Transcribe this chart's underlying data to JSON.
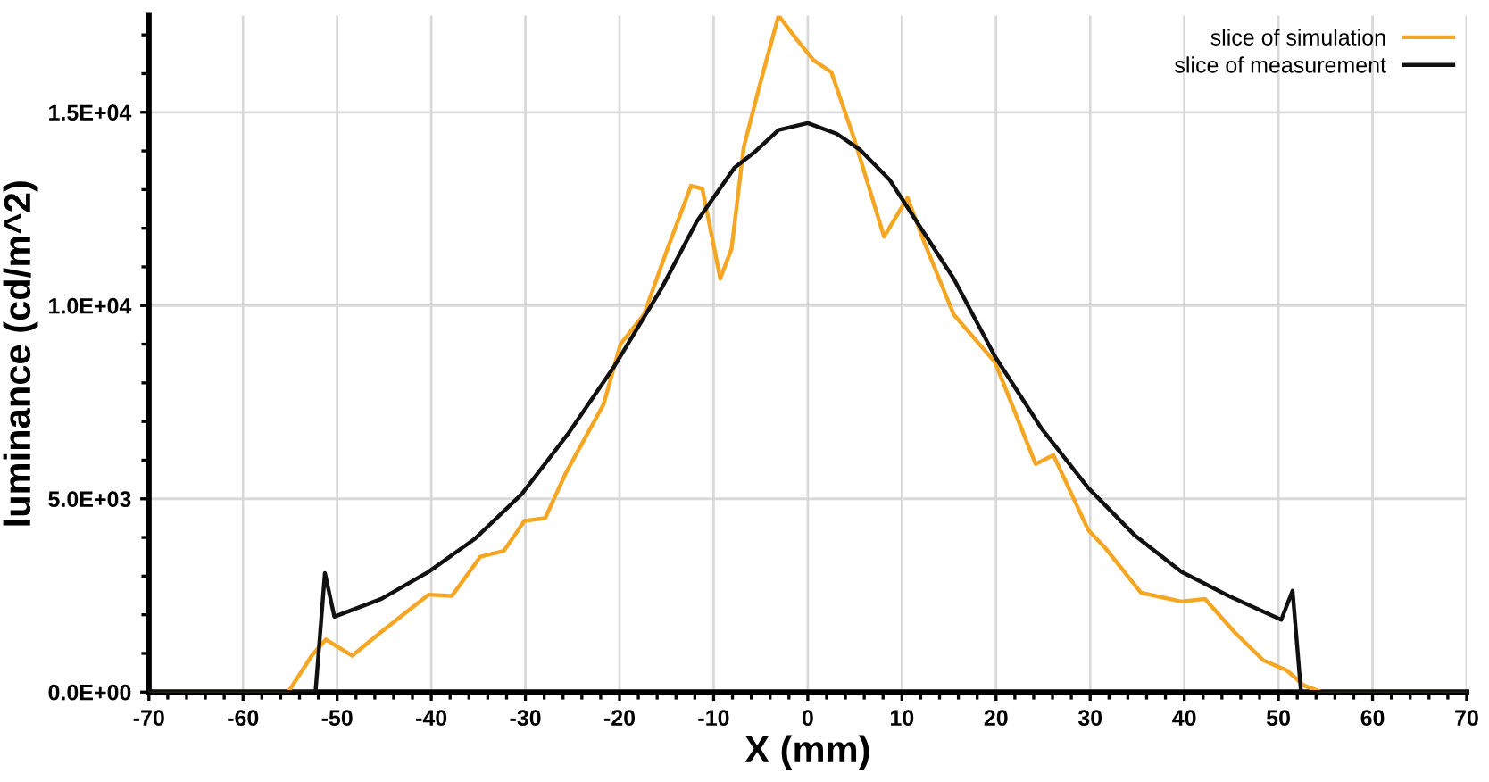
{
  "chart_data": {
    "type": "line",
    "xlabel": "X (mm)",
    "ylabel": "luminance (cd/m^2)",
    "xlim": [
      -70,
      70
    ],
    "xticks": [
      -70,
      -60,
      -50,
      -40,
      -30,
      -20,
      -10,
      0,
      10,
      20,
      30,
      40,
      50,
      60,
      70
    ],
    "ylim": [
      0,
      17500
    ],
    "yticks": [
      {
        "value": 0,
        "label": "0.0E+00"
      },
      {
        "value": 5000,
        "label": "5.0E+03"
      },
      {
        "value": 10000,
        "label": "1.0E+04"
      },
      {
        "value": 15000,
        "label": "1.5E+04"
      }
    ],
    "grid": true,
    "legend": "top right",
    "marker": "none",
    "line_style": "solid",
    "series": [
      {
        "name": "slice of simulation",
        "color": "#f5a623",
        "x": [
          -70,
          -55.2,
          -52.7,
          -51.2,
          -48.4,
          -45.3,
          -40.3,
          -37.8,
          -34.8,
          -32.3,
          -30.1,
          -27.9,
          -25.7,
          -21.7,
          -19.9,
          -17.4,
          -14.9,
          -12.4,
          -11.2,
          -9.3,
          -8.1,
          -6.8,
          -5.0,
          -3.1,
          -1.2,
          0.6,
          2.5,
          5.0,
          8.1,
          10.6,
          12.4,
          15.5,
          19.9,
          24.2,
          26.1,
          29.8,
          31.6,
          35.4,
          39.7,
          42.2,
          45.3,
          48.4,
          50.9,
          52.7,
          54.6,
          70
        ],
        "values": [
          0,
          0,
          940,
          1360,
          940,
          1560,
          2520,
          2490,
          3500,
          3650,
          4430,
          4500,
          5670,
          7440,
          9000,
          9770,
          11470,
          13100,
          13020,
          10700,
          11470,
          14100,
          15800,
          17500,
          16890,
          16350,
          16040,
          14260,
          11780,
          12790,
          11620,
          9770,
          8530,
          5900,
          6130,
          4190,
          3730,
          2570,
          2340,
          2410,
          1560,
          820,
          560,
          170,
          0,
          0
        ]
      },
      {
        "name": "slice of measurement",
        "color": "#111111",
        "x": [
          -70,
          -52.3,
          -51.3,
          -50.3,
          -45.3,
          -40.3,
          -35.4,
          -30.4,
          -25.5,
          -20.5,
          -15.5,
          -11.8,
          -7.8,
          -5.6,
          -3.1,
          0,
          3.1,
          5.6,
          8.7,
          12.4,
          15.5,
          19.9,
          24.8,
          29.8,
          34.8,
          39.7,
          44.7,
          50.3,
          51.5,
          52.4,
          70
        ],
        "values": [
          0,
          0,
          3080,
          1950,
          2410,
          3110,
          3960,
          5120,
          6670,
          8450,
          10460,
          12170,
          13560,
          13980,
          14540,
          14720,
          14440,
          14020,
          13250,
          11860,
          10700,
          8680,
          6830,
          5280,
          4040,
          3110,
          2490,
          1870,
          2620,
          0,
          0
        ]
      }
    ]
  }
}
